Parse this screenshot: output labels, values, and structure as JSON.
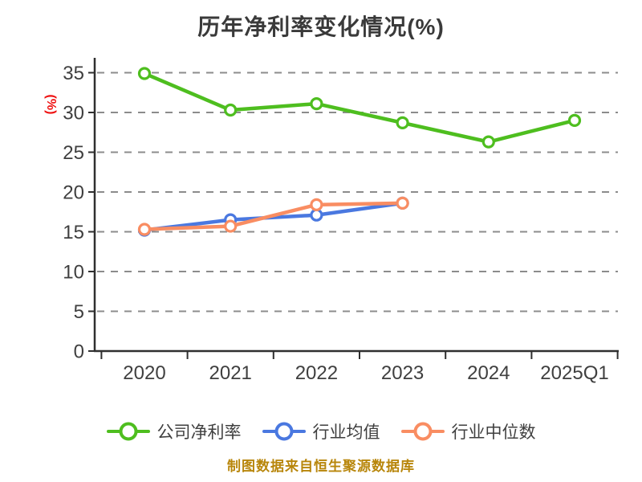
{
  "chart_data": {
    "type": "line",
    "title": "历年净利率变化情况(%)",
    "ylabel": "(%)",
    "categories": [
      "2020",
      "2021",
      "2022",
      "2023",
      "2024",
      "2025Q1"
    ],
    "series": [
      {
        "name": "公司净利率",
        "color": "#4ebe1f",
        "values": [
          34.9,
          30.3,
          31.1,
          28.7,
          26.3,
          29.0
        ]
      },
      {
        "name": "行业均值",
        "color": "#4a78e0",
        "values": [
          15.2,
          16.5,
          17.1,
          18.6,
          null,
          null
        ]
      },
      {
        "name": "行业中位数",
        "color": "#f98d62",
        "values": [
          15.3,
          15.7,
          18.4,
          18.6,
          null,
          null
        ]
      }
    ],
    "ylim": [
      0,
      35
    ],
    "y_ticks": [
      0,
      5,
      10,
      15,
      20,
      25,
      30,
      35
    ],
    "grid": "dashed horizontal",
    "legend_position": "bottom",
    "marker": "circle-white-fill"
  },
  "caption": "制图数据来自恒生聚源数据库",
  "colors": {
    "background": "#ffffff",
    "title_text": "#3a3a3a",
    "tick_text": "#3f3f3f",
    "axis": "#2f2f2f",
    "grid": "#8c8c8c",
    "ylabel_text": "#ee1111",
    "caption_text": "#b8860b",
    "marker_fill": "#ffffff"
  }
}
